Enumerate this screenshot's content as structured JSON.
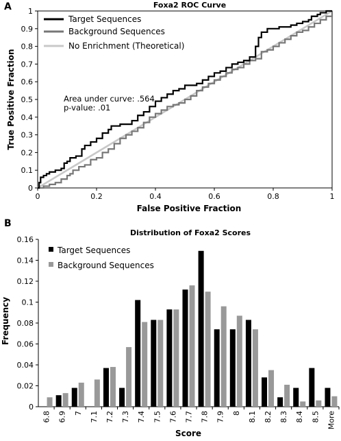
{
  "chart_data": [
    {
      "panel": "A",
      "type": "line",
      "title": "Foxa2 ROC Curve",
      "xlabel": "False Positive Fraction",
      "ylabel": "True Positive Fraction",
      "xlim": [
        0,
        1
      ],
      "ylim": [
        0,
        1
      ],
      "x_ticks": [
        "0",
        "0.2",
        "0.4",
        "0.6",
        "0.8",
        "1"
      ],
      "y_ticks": [
        "0",
        "0.1",
        "0.2",
        "0.3",
        "0.4",
        "0.5",
        "0.6",
        "0.7",
        "0.8",
        "0.9",
        "1"
      ],
      "legend_position": "top-left",
      "annotations": [
        "Area under curve: .564",
        "p-value: .01"
      ],
      "series": [
        {
          "name": "Target Sequences",
          "color": "#000000",
          "points": [
            [
              0,
              0
            ],
            [
              0.005,
              0.03
            ],
            [
              0.01,
              0.06
            ],
            [
              0.02,
              0.07
            ],
            [
              0.03,
              0.08
            ],
            [
              0.04,
              0.09
            ],
            [
              0.06,
              0.1
            ],
            [
              0.08,
              0.11
            ],
            [
              0.09,
              0.14
            ],
            [
              0.1,
              0.15
            ],
            [
              0.11,
              0.17
            ],
            [
              0.13,
              0.18
            ],
            [
              0.15,
              0.22
            ],
            [
              0.16,
              0.24
            ],
            [
              0.18,
              0.26
            ],
            [
              0.2,
              0.28
            ],
            [
              0.22,
              0.31
            ],
            [
              0.24,
              0.33
            ],
            [
              0.25,
              0.35
            ],
            [
              0.28,
              0.36
            ],
            [
              0.3,
              0.36
            ],
            [
              0.32,
              0.38
            ],
            [
              0.34,
              0.41
            ],
            [
              0.36,
              0.43
            ],
            [
              0.38,
              0.46
            ],
            [
              0.4,
              0.49
            ],
            [
              0.42,
              0.51
            ],
            [
              0.44,
              0.53
            ],
            [
              0.46,
              0.55
            ],
            [
              0.48,
              0.56
            ],
            [
              0.5,
              0.58
            ],
            [
              0.52,
              0.58
            ],
            [
              0.54,
              0.59
            ],
            [
              0.56,
              0.61
            ],
            [
              0.58,
              0.63
            ],
            [
              0.6,
              0.65
            ],
            [
              0.62,
              0.66
            ],
            [
              0.64,
              0.68
            ],
            [
              0.66,
              0.7
            ],
            [
              0.68,
              0.71
            ],
            [
              0.7,
              0.72
            ],
            [
              0.72,
              0.74
            ],
            [
              0.74,
              0.8
            ],
            [
              0.75,
              0.85
            ],
            [
              0.76,
              0.88
            ],
            [
              0.78,
              0.9
            ],
            [
              0.8,
              0.9
            ],
            [
              0.82,
              0.91
            ],
            [
              0.84,
              0.91
            ],
            [
              0.86,
              0.92
            ],
            [
              0.88,
              0.93
            ],
            [
              0.9,
              0.94
            ],
            [
              0.92,
              0.95
            ],
            [
              0.93,
              0.97
            ],
            [
              0.95,
              0.98
            ],
            [
              0.96,
              0.99
            ],
            [
              0.98,
              1.0
            ],
            [
              1.0,
              1.0
            ]
          ]
        },
        {
          "name": "Background Sequences",
          "color": "#777777",
          "points": [
            [
              0,
              0
            ],
            [
              0.02,
              0.01
            ],
            [
              0.04,
              0.02
            ],
            [
              0.06,
              0.03
            ],
            [
              0.08,
              0.05
            ],
            [
              0.1,
              0.07
            ],
            [
              0.11,
              0.08
            ],
            [
              0.12,
              0.1
            ],
            [
              0.14,
              0.12
            ],
            [
              0.16,
              0.13
            ],
            [
              0.18,
              0.16
            ],
            [
              0.2,
              0.17
            ],
            [
              0.22,
              0.2
            ],
            [
              0.24,
              0.22
            ],
            [
              0.26,
              0.25
            ],
            [
              0.28,
              0.28
            ],
            [
              0.3,
              0.3
            ],
            [
              0.32,
              0.32
            ],
            [
              0.34,
              0.34
            ],
            [
              0.36,
              0.37
            ],
            [
              0.38,
              0.4
            ],
            [
              0.4,
              0.42
            ],
            [
              0.42,
              0.44
            ],
            [
              0.44,
              0.46
            ],
            [
              0.46,
              0.47
            ],
            [
              0.48,
              0.48
            ],
            [
              0.5,
              0.5
            ],
            [
              0.52,
              0.52
            ],
            [
              0.54,
              0.55
            ],
            [
              0.56,
              0.57
            ],
            [
              0.58,
              0.59
            ],
            [
              0.6,
              0.61
            ],
            [
              0.62,
              0.63
            ],
            [
              0.64,
              0.65
            ],
            [
              0.66,
              0.67
            ],
            [
              0.68,
              0.68
            ],
            [
              0.7,
              0.7
            ],
            [
              0.72,
              0.72
            ],
            [
              0.74,
              0.73
            ],
            [
              0.76,
              0.77
            ],
            [
              0.78,
              0.78
            ],
            [
              0.8,
              0.8
            ],
            [
              0.82,
              0.82
            ],
            [
              0.84,
              0.84
            ],
            [
              0.86,
              0.86
            ],
            [
              0.88,
              0.88
            ],
            [
              0.9,
              0.89
            ],
            [
              0.92,
              0.91
            ],
            [
              0.94,
              0.93
            ],
            [
              0.96,
              0.95
            ],
            [
              0.98,
              0.97
            ],
            [
              1.0,
              1.0
            ]
          ]
        },
        {
          "name": "No Enrichment (Theoretical)",
          "color": "#c8c8c8",
          "points": [
            [
              0,
              0
            ],
            [
              1,
              1
            ]
          ]
        }
      ]
    },
    {
      "panel": "B",
      "type": "bar",
      "title": "Distribution of Foxa2 Scores",
      "xlabel": "Score",
      "ylabel": "Frequency",
      "ylim": [
        0,
        0.16
      ],
      "y_ticks": [
        "0",
        "0.02",
        "0.04",
        "0.06",
        "0.08",
        "0.1",
        "0.12",
        "0.14",
        "0.16"
      ],
      "legend_position": "top-left",
      "categories": [
        "6.8",
        "6.9",
        "7",
        "7.1",
        "7.2",
        "7.3",
        "7.4",
        "7.5",
        "7.6",
        "7.7",
        "7.8",
        "7.9",
        "8",
        "8.1",
        "8.2",
        "8.3",
        "8.4",
        "8.5",
        "More"
      ],
      "series": [
        {
          "name": "Target Sequences",
          "color": "#000000",
          "values": [
            0,
            0.011,
            0.018,
            0,
            0.037,
            0.018,
            0.102,
            0.083,
            0.093,
            0.112,
            0.149,
            0.074,
            0.074,
            0.083,
            0.028,
            0.009,
            0.018,
            0.037,
            0.018
          ]
        },
        {
          "name": "Background Sequences",
          "color": "#999999",
          "values": [
            0.009,
            0.013,
            0.023,
            0.026,
            0.038,
            0.057,
            0.081,
            0.083,
            0.093,
            0.116,
            0.11,
            0.096,
            0.087,
            0.074,
            0.035,
            0.021,
            0.005,
            0.006,
            0.01
          ]
        }
      ]
    }
  ]
}
